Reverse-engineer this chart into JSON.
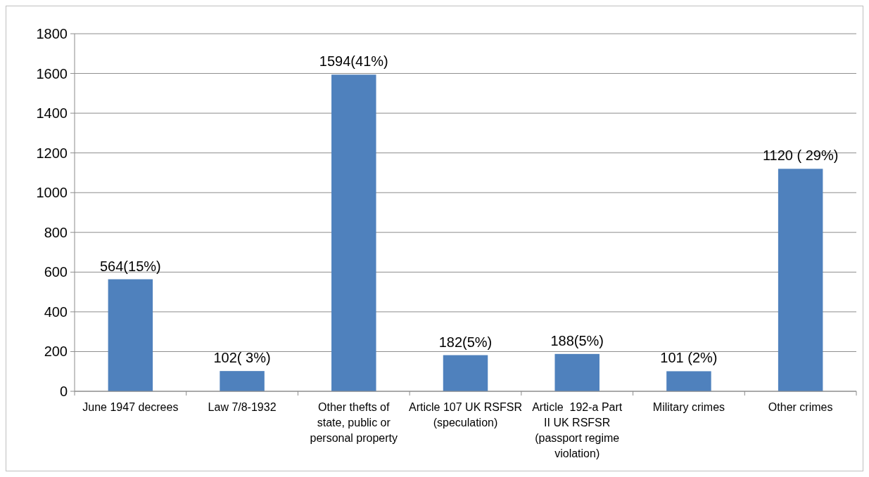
{
  "chart_data": {
    "type": "bar",
    "categories": [
      "June 1947 decrees",
      "Law 7/8-1932",
      "Other thefts of state, public or personal property",
      "Article 107 UK RSFSR (speculation)",
      "Article  192-a Part II UK RSFSR (passport regime violation)",
      "Military crimes",
      "Other crimes"
    ],
    "values": [
      564,
      102,
      1594,
      182,
      188,
      101,
      1120
    ],
    "value_labels": [
      "564(15%)",
      "102( 3%)",
      "1594(41%)",
      "182(5%)",
      "188(5%)",
      "101 (2%)",
      "1120 ( 29%)"
    ],
    "color": "#4f81bd",
    "ylim": [
      0,
      1800
    ],
    "yticks": [
      0,
      200,
      400,
      600,
      800,
      1000,
      1200,
      1400,
      1600,
      1800
    ],
    "grid": "y"
  }
}
